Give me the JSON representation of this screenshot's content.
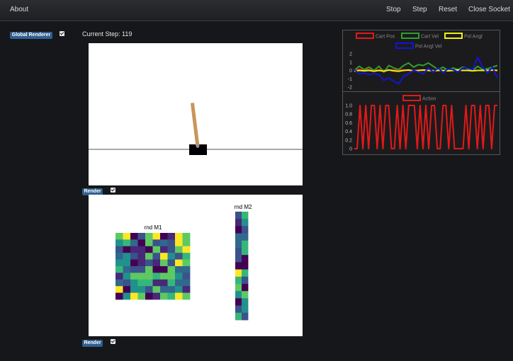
{
  "nav": {
    "about": "About",
    "stop": "Stop",
    "step": "Step",
    "reset": "Reset",
    "close_socket": "Close Socket"
  },
  "global_renderer": {
    "label": "Global Renderer",
    "checked": true
  },
  "current_step": {
    "label": "Current Step:",
    "value": "119"
  },
  "render_buttons": [
    {
      "label": "Render",
      "checked": true
    },
    {
      "label": "Render",
      "checked": true
    }
  ],
  "cartpole": {
    "pole_angle_deg": -7
  },
  "heatmaps": {
    "m1": {
      "title": "rnd M1",
      "rows": 10,
      "cols": 10
    },
    "m2": {
      "title": "rnd M2",
      "rows": 15,
      "cols": 2
    }
  },
  "chart_data": [
    {
      "type": "line",
      "series": [
        {
          "name": "Cart Pos",
          "color": "#e11919",
          "values": [
            0.1,
            0.1,
            0.1,
            0.1,
            0.05,
            0.05,
            0.05,
            0.05,
            0.05,
            0.05,
            0.05,
            0.0,
            0.0,
            0.0,
            0.0,
            0.0,
            0.0,
            0.0,
            0.0,
            0.0,
            0.0,
            0.0,
            0.0,
            0.0,
            0.0,
            0.0,
            0.0,
            0.0,
            0.0,
            0.0
          ]
        },
        {
          "name": "Cart Vel",
          "color": "#2ea02e",
          "values": [
            0.0,
            0.5,
            0.1,
            0.4,
            0.0,
            0.5,
            -0.2,
            0.6,
            0.3,
            0.1,
            0.6,
            0.9,
            0.4,
            0.7,
            0.6,
            0.9,
            0.5,
            0.1,
            0.4,
            0.0,
            0.3,
            0.1,
            0.4,
            0.2,
            0.0,
            0.5,
            0.1,
            0.2,
            0.4,
            0.6
          ]
        },
        {
          "name": "Pol Angl",
          "color": "#f0f015",
          "values": [
            -0.1,
            0.0,
            -0.05,
            0.0,
            -0.1,
            0.0,
            -0.1,
            0.05,
            -0.05,
            -0.1,
            0.0,
            0.05,
            -0.05,
            0.0,
            0.05,
            0.0,
            -0.05,
            0.0,
            0.0,
            -0.05,
            0.0,
            0.05,
            0.0,
            0.0,
            -0.05,
            0.0,
            0.0,
            0.0,
            0.05,
            0.0
          ]
        },
        {
          "name": "Pol Angl Vel",
          "color": "#1414d2",
          "values": [
            0.1,
            -0.4,
            -0.3,
            -0.5,
            -0.4,
            -0.5,
            -1.2,
            -0.9,
            -1.3,
            -1.6,
            -0.7,
            -0.4,
            0.0,
            -0.2,
            -0.4,
            0.3,
            -0.2,
            0.3,
            -0.3,
            0.2,
            0.1,
            -0.2,
            0.3,
            0.3,
            0.1,
            1.6,
            0.4,
            -0.3,
            0.4,
            -0.9
          ]
        }
      ],
      "ylim": [
        -2,
        2
      ],
      "yticks": [
        "2",
        "1",
        "0",
        "-1",
        "-2"
      ],
      "legend_placement": "top"
    },
    {
      "type": "line",
      "series": [
        {
          "name": "Action",
          "color": "#e11919",
          "values": [
            0,
            0,
            1,
            0,
            1,
            0,
            1,
            1,
            0,
            1,
            0,
            1,
            1,
            0,
            0,
            1,
            0,
            1,
            0,
            1,
            1,
            1,
            0,
            1,
            0,
            1,
            0,
            1,
            1,
            0,
            0,
            1,
            1,
            0,
            1,
            0,
            0,
            0,
            0,
            1,
            0,
            1,
            1,
            0,
            1,
            0,
            1,
            1,
            0,
            1,
            1
          ]
        }
      ],
      "ylim": [
        0,
        1
      ],
      "yticks": [
        "1.0",
        "0.8",
        "0.6",
        "0.4",
        "0.2",
        "0"
      ],
      "legend_placement": "top"
    }
  ]
}
